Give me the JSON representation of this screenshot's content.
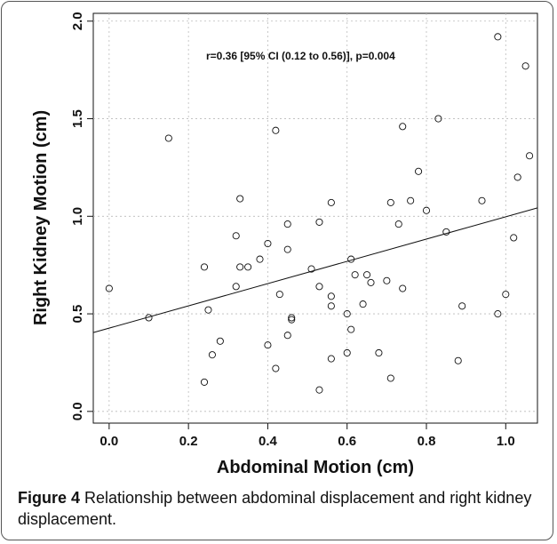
{
  "chart_data": {
    "type": "scatter",
    "xlabel": "Abdominal Motion (cm)",
    "ylabel": "Right Kidney Motion (cm)",
    "xlim": [
      -0.04,
      1.08
    ],
    "ylim": [
      -0.06,
      2.04
    ],
    "x_ticks": [
      0.0,
      0.2,
      0.4,
      0.6,
      0.8,
      1.0
    ],
    "x_tick_labels": [
      "0.0",
      "0.2",
      "0.4",
      "0.6",
      "0.8",
      "1.0"
    ],
    "y_ticks": [
      0.0,
      0.5,
      1.0,
      1.5,
      2.0
    ],
    "y_tick_labels": [
      "0.0",
      "0.5",
      "1.0",
      "1.5",
      "2.0"
    ],
    "grid": true,
    "annotation": "r=0.36 [95% CI (0.12 to 0.56)], p=0.004",
    "series": [
      {
        "marker": "open-circle",
        "x": [
          0.0,
          0.1,
          0.15,
          0.24,
          0.24,
          0.25,
          0.26,
          0.28,
          0.32,
          0.32,
          0.33,
          0.33,
          0.35,
          0.38,
          0.4,
          0.4,
          0.42,
          0.42,
          0.43,
          0.45,
          0.45,
          0.45,
          0.46,
          0.46,
          0.51,
          0.53,
          0.53,
          0.53,
          0.56,
          0.56,
          0.56,
          0.56,
          0.6,
          0.6,
          0.61,
          0.61,
          0.62,
          0.64,
          0.65,
          0.66,
          0.68,
          0.7,
          0.71,
          0.71,
          0.73,
          0.74,
          0.74,
          0.76,
          0.78,
          0.8,
          0.83,
          0.85,
          0.88,
          0.89,
          0.94,
          0.98,
          0.98,
          1.0,
          1.02,
          1.03,
          1.05,
          1.06
        ],
        "y": [
          0.63,
          0.48,
          1.4,
          0.74,
          0.15,
          0.52,
          0.29,
          0.36,
          0.9,
          0.64,
          0.74,
          1.09,
          0.74,
          0.78,
          0.86,
          0.34,
          1.44,
          0.22,
          0.6,
          0.96,
          0.83,
          0.39,
          0.48,
          0.47,
          0.73,
          0.97,
          0.64,
          0.11,
          1.07,
          0.59,
          0.54,
          0.27,
          0.5,
          0.3,
          0.78,
          0.42,
          0.7,
          0.55,
          0.7,
          0.66,
          0.3,
          0.67,
          1.07,
          0.17,
          0.96,
          1.46,
          0.63,
          1.08,
          1.23,
          1.03,
          1.5,
          0.92,
          0.26,
          0.54,
          1.08,
          1.92,
          0.5,
          0.6,
          0.89,
          1.2,
          1.77,
          1.31
        ]
      }
    ],
    "trend_line": {
      "x": [
        -0.04,
        1.08
      ],
      "y": [
        0.404,
        1.043
      ]
    }
  },
  "caption": {
    "label": "Figure 4",
    "text": " Relationship between abdominal displacement and right kidney displacement."
  },
  "colors": {
    "ink": "#111111",
    "grid": "#bbbbbb",
    "frame": "#555555"
  }
}
